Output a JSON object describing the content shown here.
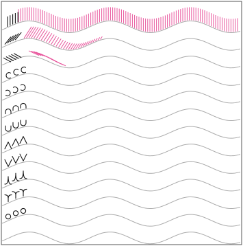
{
  "colors": {
    "background": "#ffffff",
    "frame": "#555555",
    "wave": "#aaaaaa",
    "glyph": "#111111",
    "hatch": "#e8559c"
  },
  "rows": [
    {
      "name": "vertical-lines",
      "glyph": "vertical",
      "hatch": true
    },
    {
      "name": "forward-slashes",
      "glyph": "slash",
      "hatch": true
    },
    {
      "name": "backslashes",
      "glyph": "backslash",
      "hatch": true
    },
    {
      "name": "c-curves",
      "glyph": "c"
    },
    {
      "name": "reversed-c-curves",
      "glyph": "rc"
    },
    {
      "name": "n-arches",
      "glyph": "n"
    },
    {
      "name": "u-cups",
      "glyph": "u"
    },
    {
      "name": "up-carets",
      "glyph": "up"
    },
    {
      "name": "down-carets",
      "glyph": "down"
    },
    {
      "name": "hooks",
      "glyph": "hook"
    },
    {
      "name": "y-shapes",
      "glyph": "y"
    },
    {
      "name": "circles",
      "glyph": "circle"
    }
  ]
}
